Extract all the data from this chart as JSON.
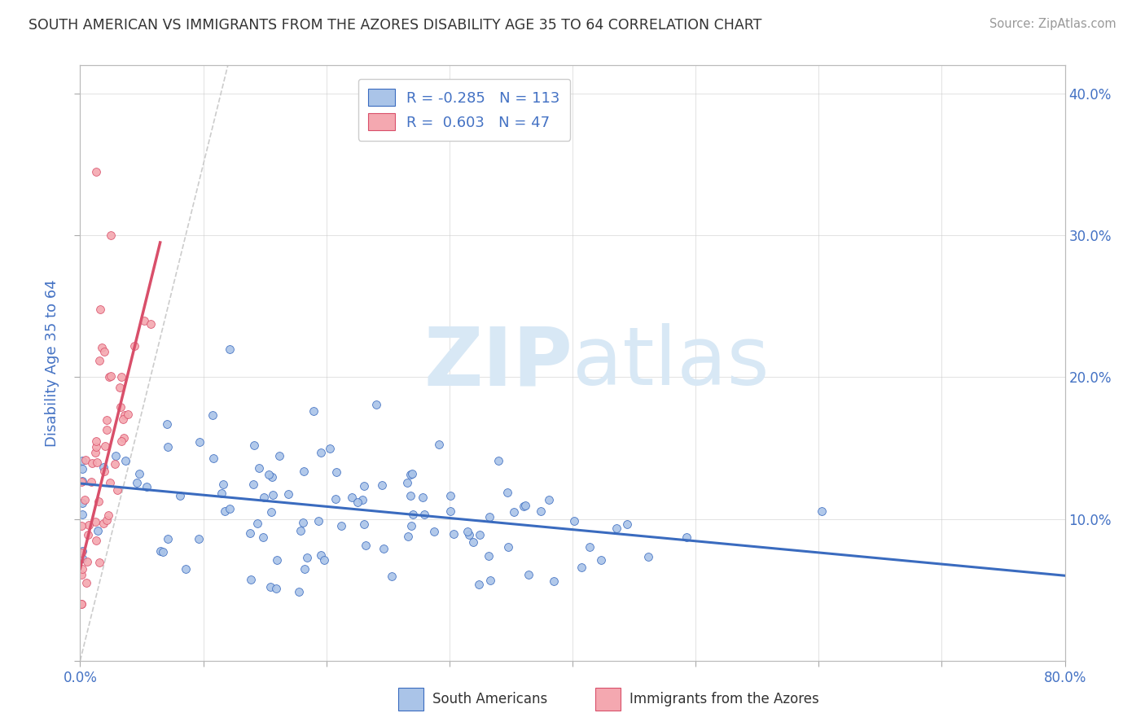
{
  "title": "SOUTH AMERICAN VS IMMIGRANTS FROM THE AZORES DISABILITY AGE 35 TO 64 CORRELATION CHART",
  "source": "Source: ZipAtlas.com",
  "ylabel": "Disability Age 35 to 64",
  "xlim": [
    0.0,
    0.8
  ],
  "ylim": [
    0.0,
    0.42
  ],
  "xticks": [
    0.0,
    0.1,
    0.2,
    0.3,
    0.4,
    0.5,
    0.6,
    0.7,
    0.8
  ],
  "yticks": [
    0.0,
    0.1,
    0.2,
    0.3,
    0.4
  ],
  "blue_R": -0.285,
  "blue_N": 113,
  "pink_R": 0.603,
  "pink_N": 47,
  "blue_scatter_color": "#aac4e8",
  "pink_scatter_color": "#f4a8b0",
  "blue_line_color": "#3a6bbf",
  "pink_line_color": "#d94f6a",
  "legend_blue_face": "#aac4e8",
  "legend_pink_face": "#f4a8b0",
  "watermark_color": "#d8e8f5",
  "grid_color": "#cccccc",
  "title_color": "#333333",
  "tick_label_color": "#4472c4",
  "background_color": "#ffffff",
  "seed": 42,
  "blue_trend_x0": 0.0,
  "blue_trend_y0": 0.125,
  "blue_trend_x1": 0.8,
  "blue_trend_y1": 0.06,
  "pink_trend_x0": 0.0,
  "pink_trend_y0": 0.065,
  "pink_trend_x1": 0.065,
  "pink_trend_y1": 0.295,
  "diag_color": "#cccccc",
  "diag_style": "--"
}
